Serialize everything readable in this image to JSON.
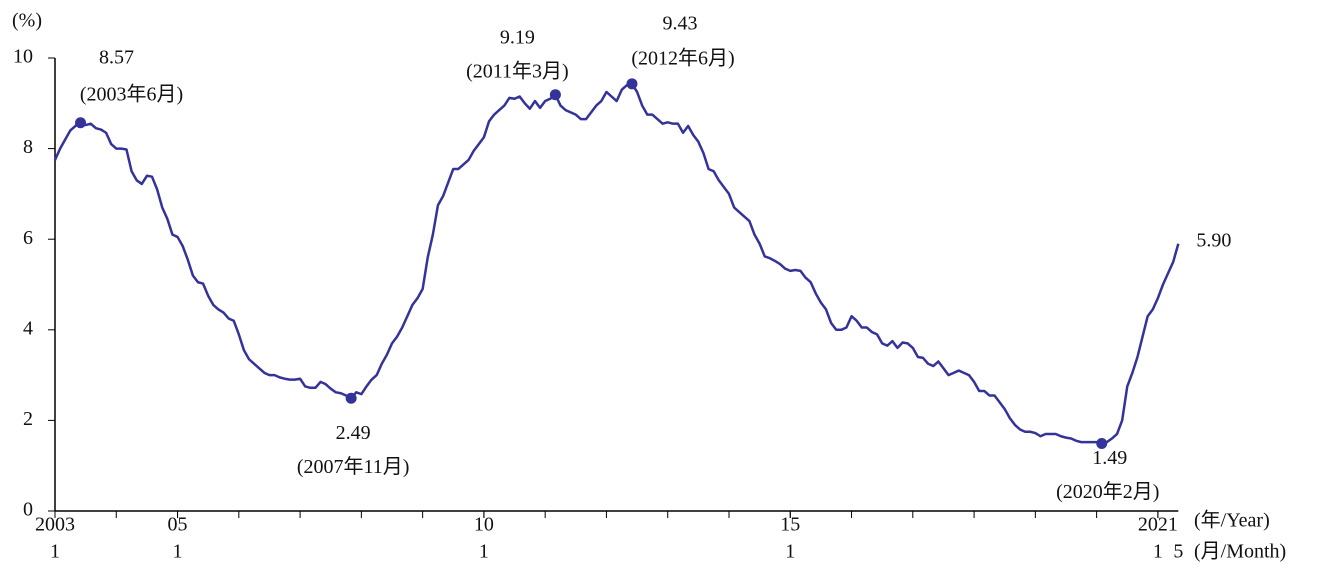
{
  "chart_data": {
    "type": "line",
    "ylabel": "(%)",
    "xlabel": "(年/Year)",
    "xlabel2": "(月/Month)",
    "ylim": [
      0,
      10
    ],
    "yticks": [
      0,
      2,
      4,
      6,
      8,
      10
    ],
    "xlim": [
      "2003-01",
      "2021-05"
    ],
    "xticks": [
      {
        "value": "2003-01",
        "label": "2003"
      },
      {
        "value": "2005-01",
        "label": "05"
      },
      {
        "value": "2010-01",
        "label": "10"
      },
      {
        "value": "2015-01",
        "label": "15"
      },
      {
        "value": "2021-01",
        "label": "2021"
      }
    ],
    "xticks_month": [
      {
        "value": "2003-01",
        "label": "1"
      },
      {
        "value": "2005-01",
        "label": "1"
      },
      {
        "value": "2010-01",
        "label": "1"
      },
      {
        "value": "2015-01",
        "label": "1"
      },
      {
        "value": "2021-01",
        "label": "1"
      },
      {
        "value": "2021-05",
        "label": "5"
      }
    ],
    "x": [
      "2003-01",
      "2003-02",
      "2003-03",
      "2003-04",
      "2003-05",
      "2003-06",
      "2003-07",
      "2003-08",
      "2003-09",
      "2003-10",
      "2003-11",
      "2003-12",
      "2004-01",
      "2004-02",
      "2004-03",
      "2004-04",
      "2004-05",
      "2004-06",
      "2004-07",
      "2004-08",
      "2004-09",
      "2004-10",
      "2004-11",
      "2004-12",
      "2005-01",
      "2005-02",
      "2005-03",
      "2005-04",
      "2005-05",
      "2005-06",
      "2005-07",
      "2005-08",
      "2005-09",
      "2005-10",
      "2005-11",
      "2005-12",
      "2006-01",
      "2006-02",
      "2006-03",
      "2006-04",
      "2006-05",
      "2006-06",
      "2006-07",
      "2006-08",
      "2006-09",
      "2006-10",
      "2006-11",
      "2006-12",
      "2007-01",
      "2007-02",
      "2007-03",
      "2007-04",
      "2007-05",
      "2007-06",
      "2007-07",
      "2007-08",
      "2007-09",
      "2007-10",
      "2007-11",
      "2007-12",
      "2008-01",
      "2008-02",
      "2008-03",
      "2008-04",
      "2008-05",
      "2008-06",
      "2008-07",
      "2008-08",
      "2008-09",
      "2008-10",
      "2008-11",
      "2008-12",
      "2009-01",
      "2009-02",
      "2009-03",
      "2009-04",
      "2009-05",
      "2009-06",
      "2009-07",
      "2009-08",
      "2009-09",
      "2009-10",
      "2009-11",
      "2009-12",
      "2010-01",
      "2010-02",
      "2010-03",
      "2010-04",
      "2010-05",
      "2010-06",
      "2010-07",
      "2010-08",
      "2010-09",
      "2010-10",
      "2010-11",
      "2010-12",
      "2011-01",
      "2011-02",
      "2011-03",
      "2011-04",
      "2011-05",
      "2011-06",
      "2011-07",
      "2011-08",
      "2011-09",
      "2011-10",
      "2011-11",
      "2011-12",
      "2012-01",
      "2012-02",
      "2012-03",
      "2012-04",
      "2012-05",
      "2012-06",
      "2012-07",
      "2012-08",
      "2012-09",
      "2012-10",
      "2012-11",
      "2012-12",
      "2013-01",
      "2013-02",
      "2013-03",
      "2013-04",
      "2013-05",
      "2013-06",
      "2013-07",
      "2013-08",
      "2013-09",
      "2013-10",
      "2013-11",
      "2013-12",
      "2014-01",
      "2014-02",
      "2014-03",
      "2014-04",
      "2014-05",
      "2014-06",
      "2014-07",
      "2014-08",
      "2014-09",
      "2014-10",
      "2014-11",
      "2014-12",
      "2015-01",
      "2015-02",
      "2015-03",
      "2015-04",
      "2015-05",
      "2015-06",
      "2015-07",
      "2015-08",
      "2015-09",
      "2015-10",
      "2015-11",
      "2015-12",
      "2016-01",
      "2016-02",
      "2016-03",
      "2016-04",
      "2016-05",
      "2016-06",
      "2016-07",
      "2016-08",
      "2016-09",
      "2016-10",
      "2016-11",
      "2016-12",
      "2017-01",
      "2017-02",
      "2017-03",
      "2017-04",
      "2017-05",
      "2017-06",
      "2017-07",
      "2017-08",
      "2017-09",
      "2017-10",
      "2017-11",
      "2017-12",
      "2018-01",
      "2018-02",
      "2018-03",
      "2018-04",
      "2018-05",
      "2018-06",
      "2018-07",
      "2018-08",
      "2018-09",
      "2018-10",
      "2018-11",
      "2018-12",
      "2019-01",
      "2019-02",
      "2019-03",
      "2019-04",
      "2019-05",
      "2019-06",
      "2019-07",
      "2019-08",
      "2019-09",
      "2019-10",
      "2019-11",
      "2019-12",
      "2020-01",
      "2020-02",
      "2020-03",
      "2020-04",
      "2020-05",
      "2020-06",
      "2020-07",
      "2020-08",
      "2020-09",
      "2020-10",
      "2020-11",
      "2020-12",
      "2021-01",
      "2021-02",
      "2021-03",
      "2021-04",
      "2021-05"
    ],
    "series": [
      {
        "color": "#33339a",
        "values": [
          7.75,
          8.0,
          8.2,
          8.4,
          8.5,
          8.57,
          8.52,
          8.55,
          8.45,
          8.42,
          8.35,
          8.1,
          8.0,
          8.0,
          7.98,
          7.5,
          7.3,
          7.22,
          7.4,
          7.38,
          7.1,
          6.7,
          6.45,
          6.1,
          6.05,
          5.85,
          5.55,
          5.2,
          5.05,
          5.02,
          4.75,
          4.55,
          4.45,
          4.38,
          4.25,
          4.2,
          3.9,
          3.55,
          3.35,
          3.25,
          3.15,
          3.05,
          3.0,
          3.0,
          2.95,
          2.92,
          2.9,
          2.9,
          2.92,
          2.75,
          2.72,
          2.72,
          2.85,
          2.8,
          2.7,
          2.62,
          2.6,
          2.55,
          2.49,
          2.62,
          2.58,
          2.75,
          2.9,
          3.0,
          3.25,
          3.45,
          3.7,
          3.85,
          4.05,
          4.3,
          4.55,
          4.7,
          4.9,
          5.6,
          6.1,
          6.75,
          6.95,
          7.25,
          7.55,
          7.55,
          7.65,
          7.75,
          7.95,
          8.1,
          8.25,
          8.6,
          8.75,
          8.85,
          8.95,
          9.12,
          9.1,
          9.15,
          9.0,
          8.88,
          9.05,
          8.9,
          9.05,
          9.1,
          9.19,
          8.95,
          8.85,
          8.8,
          8.75,
          8.65,
          8.65,
          8.8,
          8.95,
          9.05,
          9.25,
          9.15,
          9.05,
          9.3,
          9.4,
          9.43,
          9.25,
          8.95,
          8.75,
          8.75,
          8.65,
          8.55,
          8.58,
          8.55,
          8.55,
          8.35,
          8.5,
          8.3,
          8.15,
          7.9,
          7.55,
          7.5,
          7.3,
          7.15,
          7.0,
          6.7,
          6.6,
          6.5,
          6.4,
          6.1,
          5.9,
          5.62,
          5.58,
          5.52,
          5.45,
          5.35,
          5.3,
          5.32,
          5.3,
          5.15,
          5.05,
          4.8,
          4.6,
          4.45,
          4.15,
          4.0,
          4.0,
          4.05,
          4.3,
          4.2,
          4.05,
          4.05,
          3.95,
          3.9,
          3.7,
          3.65,
          3.75,
          3.6,
          3.72,
          3.7,
          3.6,
          3.4,
          3.38,
          3.25,
          3.2,
          3.3,
          3.15,
          3.0,
          3.05,
          3.1,
          3.05,
          3.0,
          2.85,
          2.65,
          2.65,
          2.55,
          2.55,
          2.4,
          2.25,
          2.05,
          1.9,
          1.8,
          1.75,
          1.75,
          1.72,
          1.65,
          1.7,
          1.7,
          1.7,
          1.65,
          1.62,
          1.6,
          1.55,
          1.52,
          1.52,
          1.52,
          1.52,
          1.49,
          1.52,
          1.6,
          1.7,
          2.0,
          2.75,
          3.05,
          3.4,
          3.85,
          4.3,
          4.45,
          4.7,
          5.0,
          5.25,
          5.5,
          5.9
        ]
      }
    ],
    "annotations": [
      {
        "x": "2003-06",
        "value": 8.57,
        "value_label": "8.57",
        "label": "(2003年6月)"
      },
      {
        "x": "2007-11",
        "value": 2.49,
        "value_label": "2.49",
        "label": "(2007年11月)"
      },
      {
        "x": "2011-03",
        "value": 9.19,
        "value_label": "9.19",
        "label": "(2011年3月)"
      },
      {
        "x": "2012-06",
        "value": 9.43,
        "value_label": "9.43",
        "label": "(2012年6月)"
      },
      {
        "x": "2020-02",
        "value": 1.49,
        "value_label": "1.49",
        "label": "(2020年2月)"
      }
    ],
    "end_label": {
      "value": 5.9,
      "label": "5.90"
    }
  }
}
